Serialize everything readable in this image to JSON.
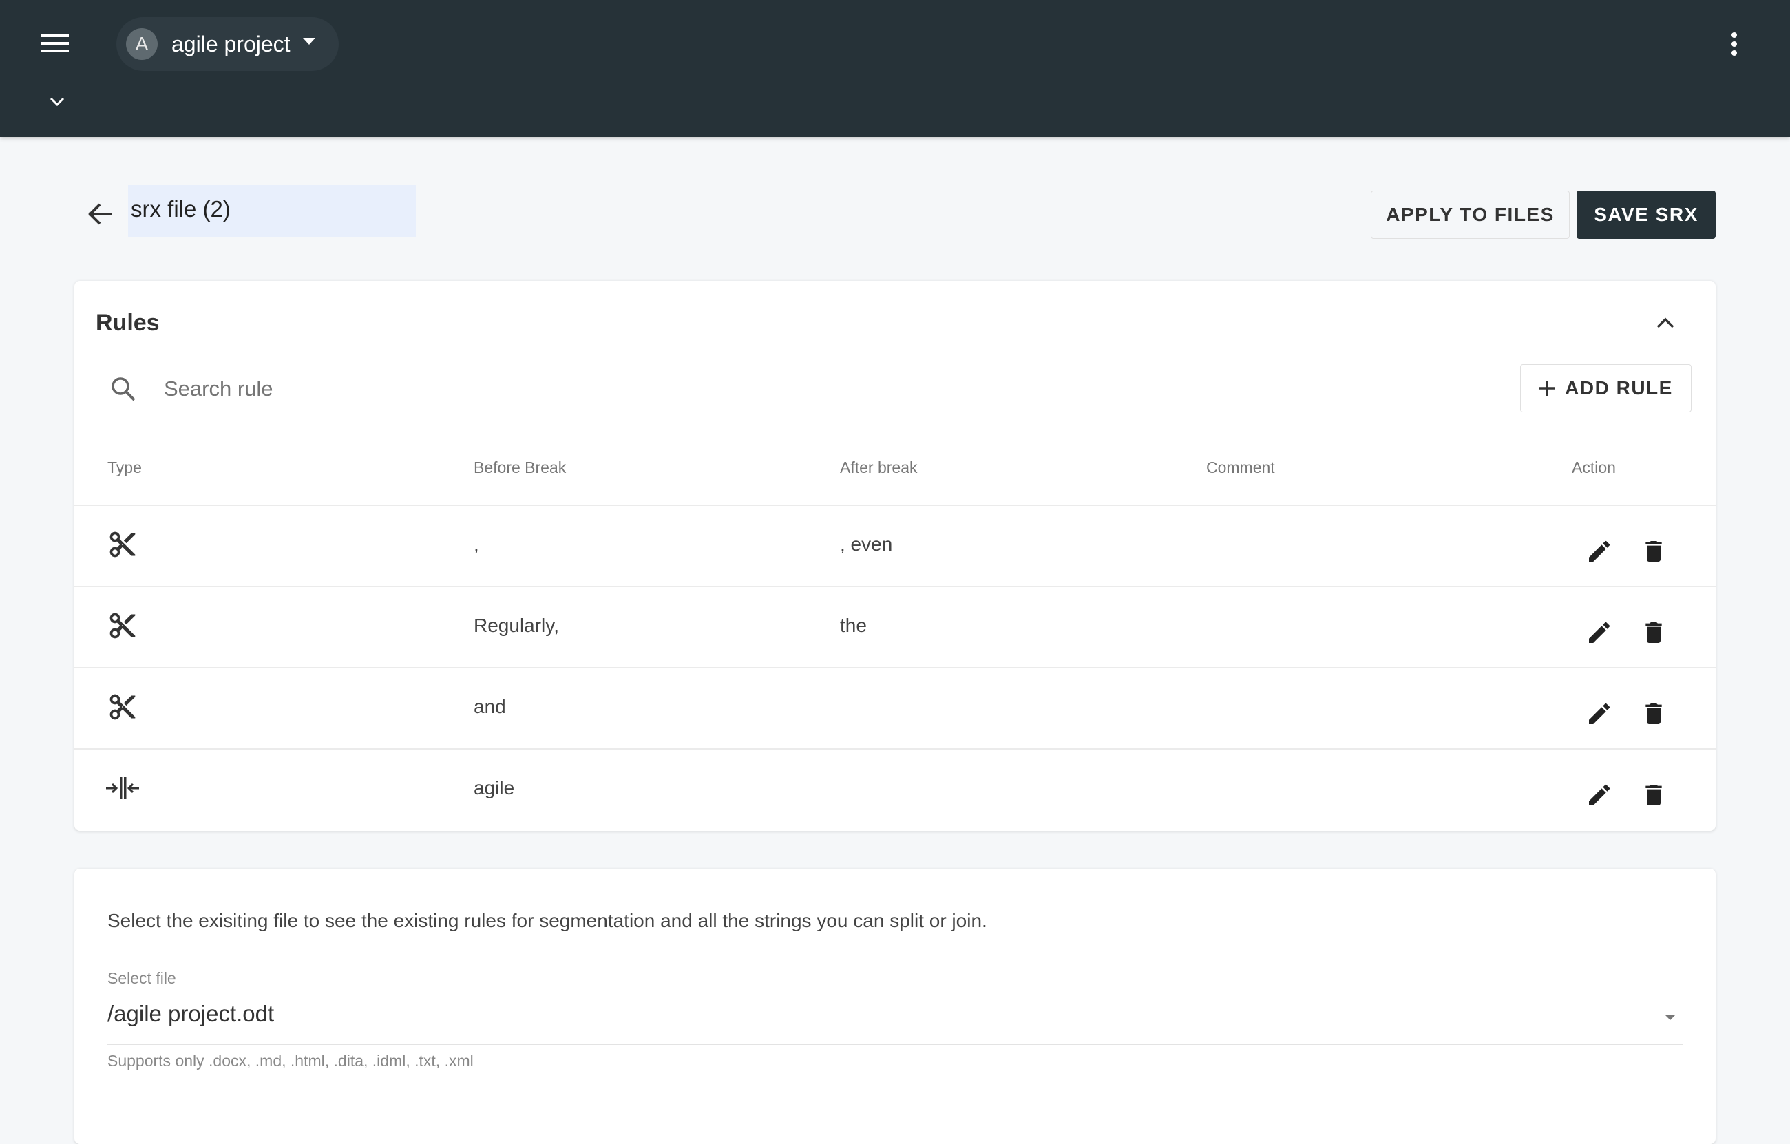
{
  "topbar": {
    "project_initial": "A",
    "project_name": "agile project"
  },
  "page": {
    "title": "srx file (2)",
    "apply_label": "APPLY TO FILES",
    "save_label": "SAVE SRX"
  },
  "rules": {
    "title": "Rules",
    "search_placeholder": "Search rule",
    "add_label": "ADD RULE",
    "columns": [
      "Type",
      "Before Break",
      "After break",
      "Comment",
      "Action"
    ],
    "rows": [
      {
        "type": "break",
        "before": ",",
        "after": ", even",
        "comment": ""
      },
      {
        "type": "break",
        "before": "Regularly,",
        "after": "the",
        "comment": ""
      },
      {
        "type": "break",
        "before": "and",
        "after": "",
        "comment": ""
      },
      {
        "type": "no-break",
        "before": "agile",
        "after": "",
        "comment": ""
      }
    ]
  },
  "file": {
    "description": "Select the exisiting file to see the existing rules for segmentation and all the strings you can split or join.",
    "label": "Select file",
    "value": "/agile project.odt",
    "helper": "Supports only .docx, .md, .html, .dita, .idml, .txt, .xml"
  },
  "colors": {
    "header": "#263238",
    "primary_button": "#263238",
    "title_field_bg": "#e8effc"
  }
}
